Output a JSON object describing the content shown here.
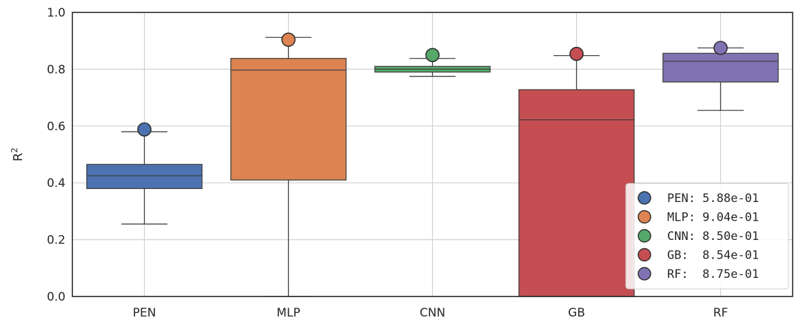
{
  "chart_data": {
    "type": "box",
    "ylabel": "R",
    "ylabel_superscript": "2",
    "ylim": [
      0.0,
      1.0
    ],
    "yticks": [
      "0.0",
      "0.2",
      "0.4",
      "0.6",
      "0.8",
      "1.0"
    ],
    "grid": true,
    "legend_position": "lower-right",
    "categories": [
      "PEN",
      "MLP",
      "CNN",
      "GB",
      "RF"
    ],
    "boxes": [
      {
        "name": "PEN",
        "whisker_low": 0.255,
        "q1": 0.38,
        "median": 0.425,
        "q3": 0.465,
        "whisker_high": 0.58,
        "best": 0.588,
        "color": "#4c72b0"
      },
      {
        "name": "MLP",
        "whisker_low": 0.0,
        "q1": 0.41,
        "median": 0.797,
        "q3": 0.838,
        "whisker_high": 0.912,
        "best": 0.904,
        "color": "#dd8452"
      },
      {
        "name": "CNN",
        "whisker_low": 0.775,
        "q1": 0.79,
        "median": 0.8,
        "q3": 0.81,
        "whisker_high": 0.838,
        "best": 0.85,
        "color": "#55a868"
      },
      {
        "name": "GB",
        "whisker_low": 0.0,
        "q1": 0.0,
        "median": 0.622,
        "q3": 0.728,
        "whisker_high": 0.848,
        "best": 0.854,
        "color": "#c44e52"
      },
      {
        "name": "RF",
        "whisker_low": 0.655,
        "q1": 0.755,
        "median": 0.828,
        "q3": 0.856,
        "whisker_high": 0.875,
        "best": 0.875,
        "color": "#8172b3"
      }
    ],
    "legend": [
      {
        "label": "PEN: 5.88e-01",
        "color": "#4c72b0"
      },
      {
        "label": "MLP: 9.04e-01",
        "color": "#dd8452"
      },
      {
        "label": "CNN: 8.50e-01",
        "color": "#55a868"
      },
      {
        "label": "GB:  8.54e-01",
        "color": "#c44e52"
      },
      {
        "label": "RF:  8.75e-01",
        "color": "#8172b3"
      }
    ]
  }
}
